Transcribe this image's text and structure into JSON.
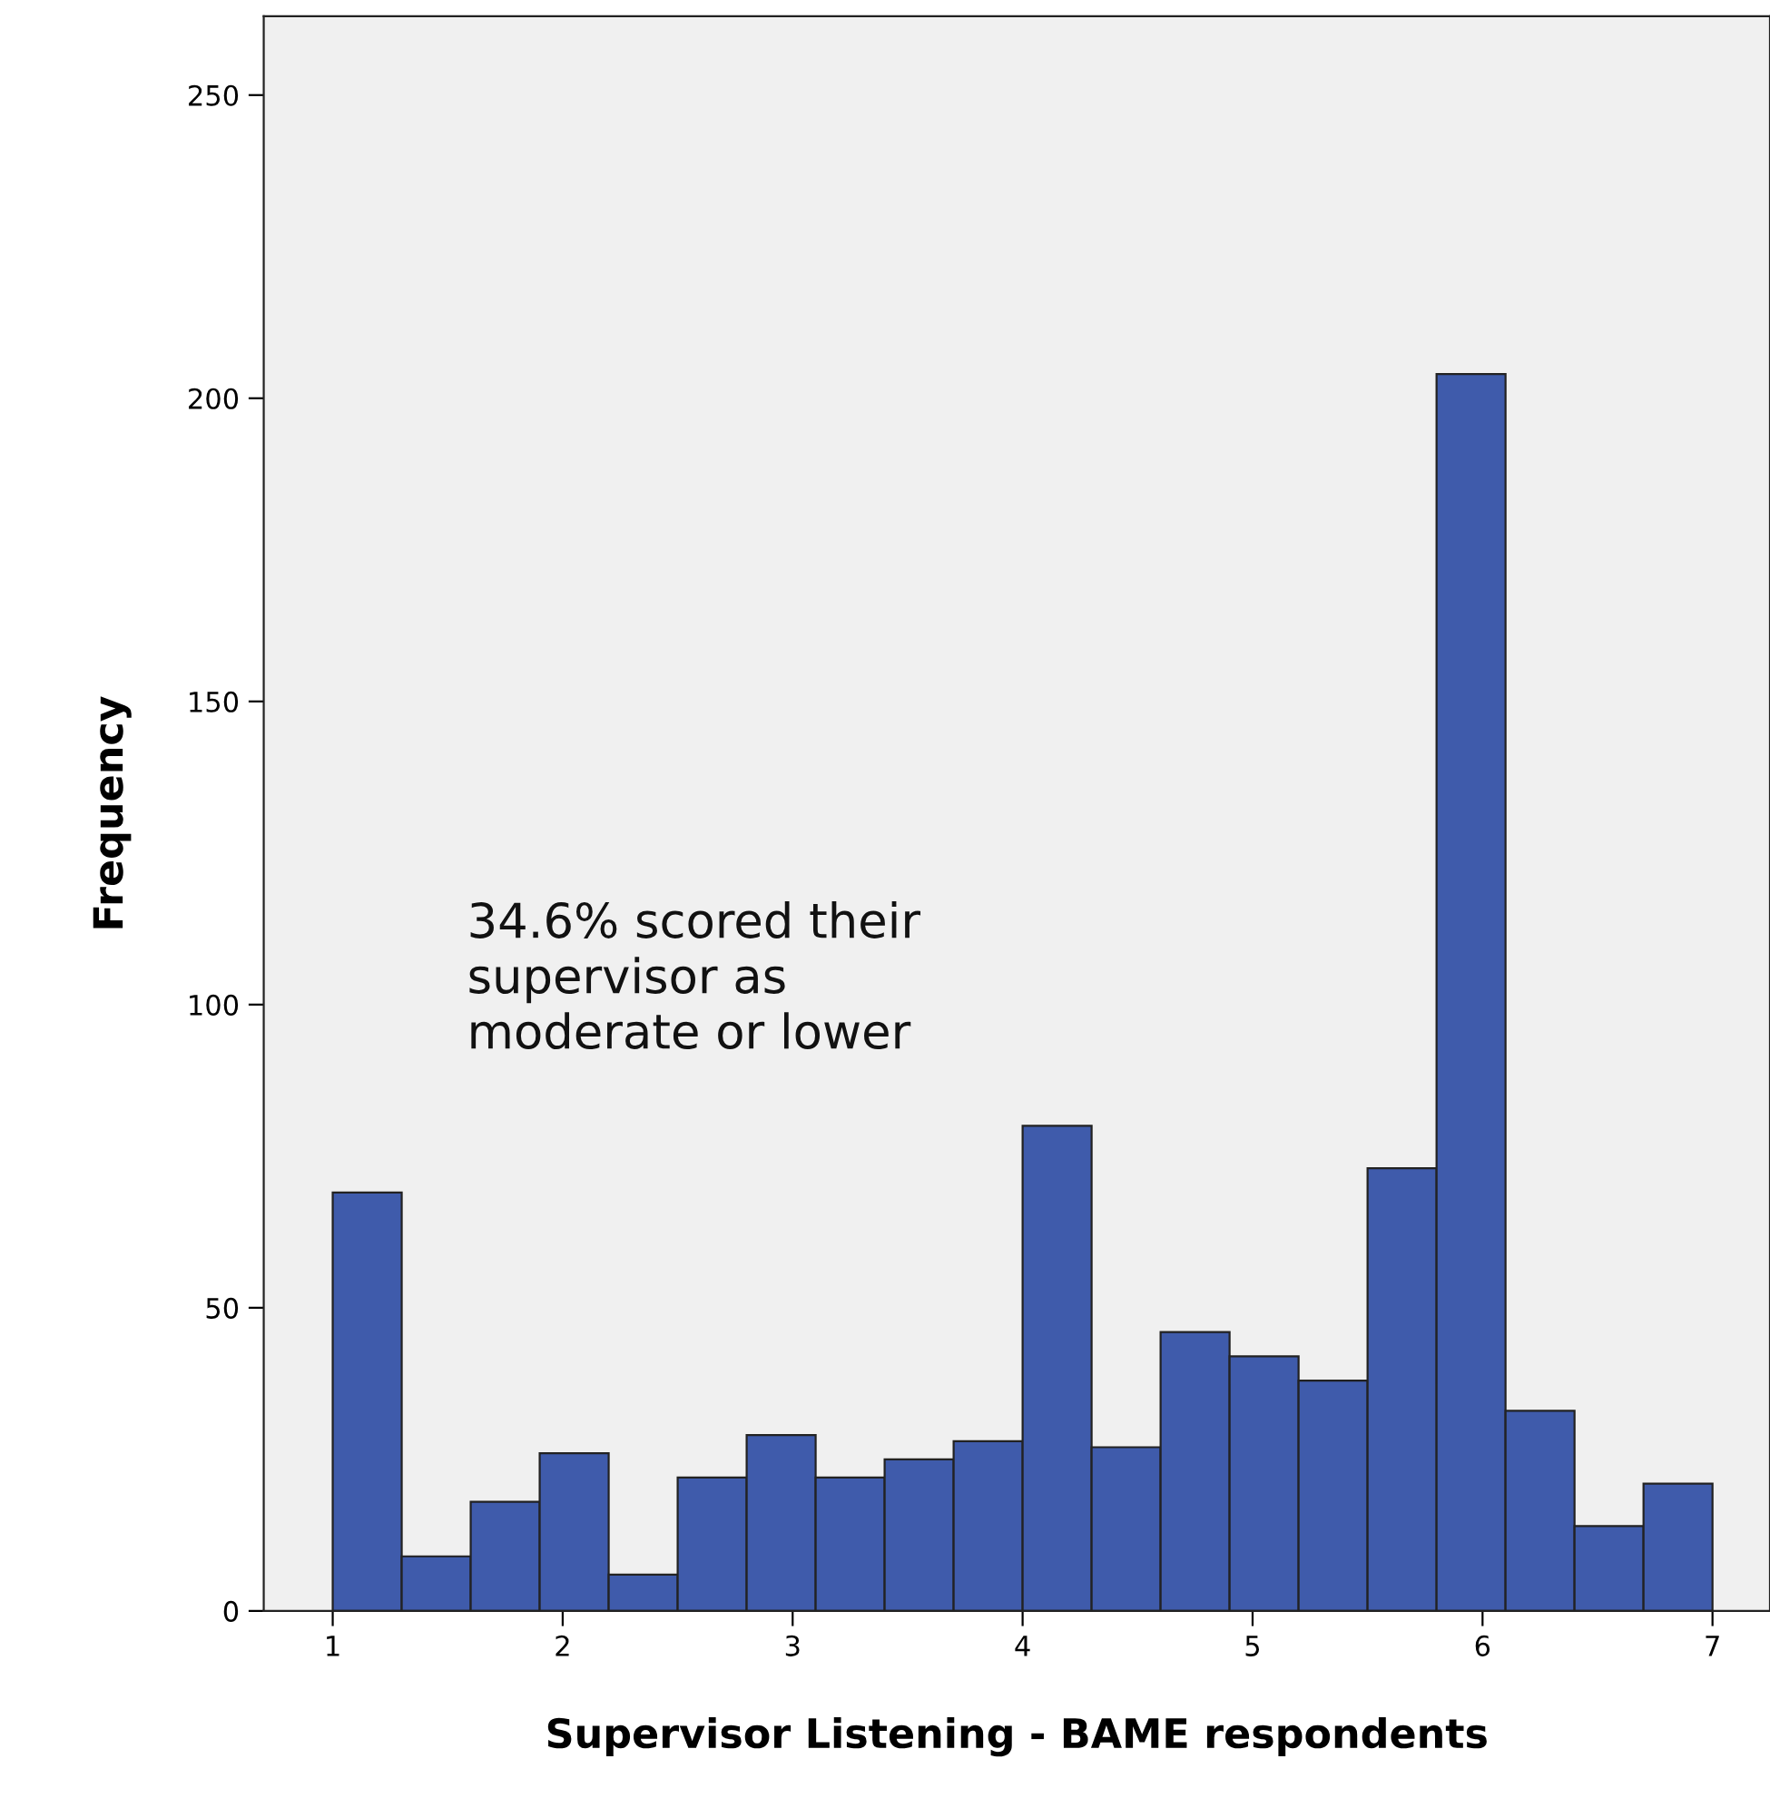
{
  "chart_data": {
    "type": "histogram",
    "xlabel": "Supervisor Listening - BAME respondents",
    "ylabel": "Frequency",
    "bins": [
      1.0,
      1.3,
      1.6,
      1.9,
      2.2,
      2.5,
      2.8,
      3.1,
      3.4,
      3.7,
      4.0,
      4.3,
      4.6,
      4.9,
      5.2,
      5.5,
      5.8,
      6.1,
      6.4,
      6.7,
      7.0
    ],
    "values": [
      69,
      9,
      18,
      26,
      6,
      22,
      29,
      22,
      25,
      28,
      80,
      27,
      46,
      42,
      38,
      73,
      204,
      33,
      14,
      21
    ],
    "color": "#3f5bab",
    "xlim": [
      0.7,
      7.25
    ],
    "ylim": [
      0,
      263
    ],
    "xticks": [
      1,
      2,
      3,
      4,
      5,
      6,
      7
    ],
    "yticks": [
      0,
      50,
      100,
      150,
      200,
      250
    ],
    "grid": false,
    "annotations": [
      "34.6% scored their\nsupervisor as\nmoderate or lower"
    ]
  }
}
